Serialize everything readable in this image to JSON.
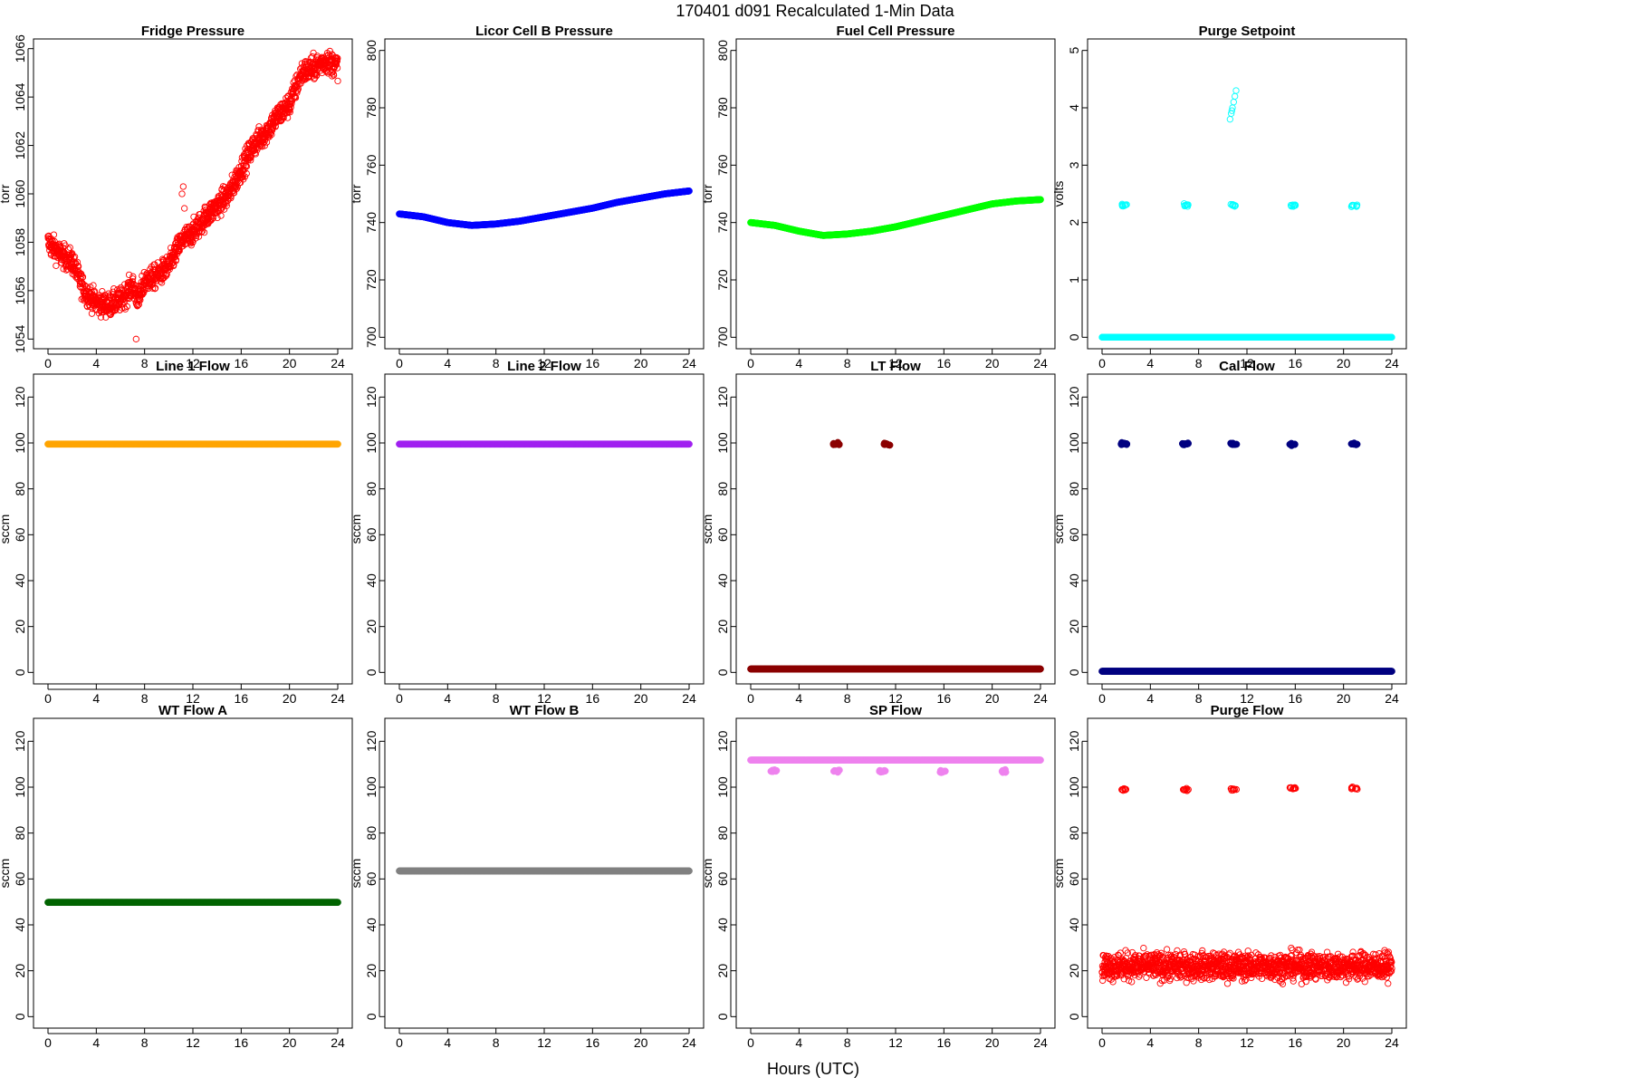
{
  "header": {
    "title": "170401   d091   Recalculated 1-Min Data"
  },
  "footer": {
    "xlabel": "Hours (UTC)"
  },
  "chart_data": [
    {
      "type": "scatter",
      "title": "Fridge Pressure",
      "ylabel": "torr",
      "xlim": [
        0,
        24
      ],
      "ylim": [
        1053.6,
        1066.4
      ],
      "yticks": [
        1054,
        1056,
        1058,
        1060,
        1062,
        1064,
        1066
      ],
      "xticks": [
        0,
        4,
        8,
        12,
        16,
        20,
        24
      ],
      "marker": "open-circle",
      "color": "#ff0000",
      "series": [
        {
          "x": [
            0,
            1,
            2,
            3,
            4,
            5,
            6,
            7,
            7.5,
            8,
            9,
            10,
            11,
            12,
            13,
            14,
            15,
            16,
            17,
            18,
            19,
            20,
            21,
            22,
            23,
            24
          ],
          "y": [
            1058,
            1057.5,
            1057.2,
            1056,
            1055.5,
            1055.4,
            1055.6,
            1056.2,
            1055.6,
            1056.4,
            1056.6,
            1057,
            1058,
            1058.4,
            1059,
            1059.5,
            1060,
            1061,
            1062,
            1062.5,
            1063.2,
            1063.7,
            1065,
            1065.2,
            1065.5,
            1065.3
          ],
          "noise": 0.5
        }
      ],
      "outliers": {
        "x": [
          11.1,
          11.2,
          11.3,
          7.3
        ],
        "y": [
          1060,
          1060.3,
          1059.4,
          1054
        ]
      }
    },
    {
      "type": "scatter",
      "title": "Licor Cell B Pressure",
      "ylabel": "torr",
      "xlim": [
        0,
        24
      ],
      "ylim": [
        696,
        804
      ],
      "yticks": [
        700,
        720,
        740,
        760,
        780,
        800
      ],
      "xticks": [
        0,
        4,
        8,
        12,
        16,
        20,
        24
      ],
      "marker": "filled",
      "color": "#0000ff",
      "series": [
        {
          "x": [
            0,
            2,
            4,
            6,
            8,
            10,
            12,
            14,
            16,
            18,
            20,
            22,
            24
          ],
          "y": [
            743,
            742,
            740,
            739,
            739.5,
            740.5,
            742,
            743.5,
            745,
            747,
            748.5,
            750,
            751
          ],
          "noise": 0
        }
      ]
    },
    {
      "type": "scatter",
      "title": "Fuel Cell Pressure",
      "ylabel": "torr",
      "xlim": [
        0,
        24
      ],
      "ylim": [
        696,
        804
      ],
      "yticks": [
        700,
        720,
        740,
        760,
        780,
        800
      ],
      "xticks": [
        0,
        4,
        8,
        12,
        16,
        20,
        24
      ],
      "marker": "filled",
      "color": "#00ff00",
      "series": [
        {
          "x": [
            0,
            2,
            4,
            6,
            8,
            10,
            12,
            14,
            16,
            18,
            20,
            22,
            24
          ],
          "y": [
            740,
            739,
            737,
            735.5,
            736,
            737,
            738.5,
            740.5,
            742.5,
            744.5,
            746.5,
            747.5,
            748
          ],
          "noise": 0
        }
      ]
    },
    {
      "type": "scatter",
      "title": "Purge Setpoint",
      "ylabel": "volts",
      "xlim": [
        0,
        24
      ],
      "ylim": [
        -0.2,
        5.2
      ],
      "yticks": [
        0,
        1,
        2,
        3,
        4,
        5
      ],
      "xticks": [
        0,
        4,
        8,
        12,
        16,
        20,
        24
      ],
      "marker": "open-circle",
      "color": "#00ffff",
      "series": [
        {
          "x": [
            0,
            24
          ],
          "y": [
            0,
            0
          ],
          "noise": 0
        }
      ],
      "clusters": [
        {
          "x": 1.8,
          "y": 2.3
        },
        {
          "x": 6.9,
          "y": 2.3
        },
        {
          "x": 10.9,
          "y": 2.3
        },
        {
          "x": 15.8,
          "y": 2.3
        },
        {
          "x": 20.9,
          "y": 2.3
        }
      ],
      "outliers": {
        "x": [
          10.6,
          10.7,
          10.8,
          10.9,
          11.0,
          11.1,
          10.75
        ],
        "y": [
          3.8,
          3.9,
          4.0,
          4.1,
          4.2,
          4.3,
          3.95
        ]
      }
    },
    {
      "type": "scatter",
      "title": "Line 1 Flow",
      "ylabel": "sccm",
      "xlim": [
        0,
        24
      ],
      "ylim": [
        -5,
        130
      ],
      "yticks": [
        0,
        20,
        40,
        60,
        80,
        100,
        120
      ],
      "xticks": [
        0,
        4,
        8,
        12,
        16,
        20,
        24
      ],
      "marker": "filled",
      "color": "#ffa500",
      "series": [
        {
          "x": [
            0,
            24
          ],
          "y": [
            99.5,
            99.5
          ],
          "noise": 0
        }
      ]
    },
    {
      "type": "scatter",
      "title": "Line 2 Flow",
      "ylabel": "sccm",
      "xlim": [
        0,
        24
      ],
      "ylim": [
        -5,
        130
      ],
      "yticks": [
        0,
        20,
        40,
        60,
        80,
        100,
        120
      ],
      "xticks": [
        0,
        4,
        8,
        12,
        16,
        20,
        24
      ],
      "marker": "filled",
      "color": "#a020f0",
      "series": [
        {
          "x": [
            0,
            24
          ],
          "y": [
            99.5,
            99.5
          ],
          "noise": 0
        }
      ]
    },
    {
      "type": "scatter",
      "title": "LT Flow",
      "ylabel": "sccm",
      "xlim": [
        0,
        24
      ],
      "ylim": [
        -5,
        130
      ],
      "yticks": [
        0,
        20,
        40,
        60,
        80,
        100,
        120
      ],
      "xticks": [
        0,
        4,
        8,
        12,
        16,
        20,
        24
      ],
      "marker": "filled",
      "color": "#8b0000",
      "series": [
        {
          "x": [
            0,
            24
          ],
          "y": [
            1.5,
            1.5
          ],
          "noise": 0
        }
      ],
      "clusters": [
        {
          "x": 7.1,
          "y": 99.5
        },
        {
          "x": 11.3,
          "y": 99.5
        }
      ]
    },
    {
      "type": "scatter",
      "title": "Cal Flow",
      "ylabel": "sccm",
      "xlim": [
        0,
        24
      ],
      "ylim": [
        -5,
        130
      ],
      "yticks": [
        0,
        20,
        40,
        60,
        80,
        100,
        120
      ],
      "xticks": [
        0,
        4,
        8,
        12,
        16,
        20,
        24
      ],
      "marker": "filled",
      "color": "#000080",
      "series": [
        {
          "x": [
            0,
            24
          ],
          "y": [
            0.5,
            0.5
          ],
          "noise": 0
        }
      ],
      "clusters": [
        {
          "x": 1.8,
          "y": 99.5
        },
        {
          "x": 6.9,
          "y": 99.5
        },
        {
          "x": 10.9,
          "y": 99.5
        },
        {
          "x": 15.8,
          "y": 99.5
        },
        {
          "x": 20.9,
          "y": 99.5
        }
      ]
    },
    {
      "type": "scatter",
      "title": "WT Flow A",
      "ylabel": "sccm",
      "xlim": [
        0,
        24
      ],
      "ylim": [
        -5,
        130
      ],
      "yticks": [
        0,
        20,
        40,
        60,
        80,
        100,
        120
      ],
      "xticks": [
        0,
        4,
        8,
        12,
        16,
        20,
        24
      ],
      "marker": "filled",
      "color": "#006400",
      "series": [
        {
          "x": [
            0,
            24
          ],
          "y": [
            49.8,
            49.8
          ],
          "noise": 0
        }
      ]
    },
    {
      "type": "scatter",
      "title": "WT Flow B",
      "ylabel": "sccm",
      "xlim": [
        0,
        24
      ],
      "ylim": [
        -5,
        130
      ],
      "yticks": [
        0,
        20,
        40,
        60,
        80,
        100,
        120
      ],
      "xticks": [
        0,
        4,
        8,
        12,
        16,
        20,
        24
      ],
      "marker": "filled",
      "color": "#808080",
      "series": [
        {
          "x": [
            0,
            24
          ],
          "y": [
            63.5,
            63.5
          ],
          "noise": 0
        }
      ]
    },
    {
      "type": "scatter",
      "title": "SP Flow",
      "ylabel": "sccm",
      "xlim": [
        0,
        24
      ],
      "ylim": [
        -5,
        130
      ],
      "yticks": [
        0,
        20,
        40,
        60,
        80,
        100,
        120
      ],
      "xticks": [
        0,
        4,
        8,
        12,
        16,
        20,
        24
      ],
      "marker": "filled",
      "color": "#ee82ee",
      "series": [
        {
          "x": [
            0,
            24
          ],
          "y": [
            111.8,
            111.8
          ],
          "noise": 0
        }
      ],
      "clusters": [
        {
          "x": 1.9,
          "y": 107
        },
        {
          "x": 7.1,
          "y": 107
        },
        {
          "x": 10.9,
          "y": 107
        },
        {
          "x": 15.9,
          "y": 107
        },
        {
          "x": 21.0,
          "y": 107
        }
      ]
    },
    {
      "type": "scatter",
      "title": "Purge Flow",
      "ylabel": "sccm",
      "xlim": [
        0,
        24
      ],
      "ylim": [
        -5,
        130
      ],
      "yticks": [
        0,
        20,
        40,
        60,
        80,
        100,
        120
      ],
      "xticks": [
        0,
        4,
        8,
        12,
        16,
        20,
        24
      ],
      "marker": "open-circle",
      "color": "#ff0000",
      "series": [
        {
          "x": [
            0,
            24
          ],
          "y": [
            22,
            22
          ],
          "noise": 6
        }
      ],
      "clusters": [
        {
          "x": 1.8,
          "y": 99
        },
        {
          "x": 6.9,
          "y": 99
        },
        {
          "x": 10.9,
          "y": 99
        },
        {
          "x": 15.8,
          "y": 99.5
        },
        {
          "x": 20.9,
          "y": 99.5
        }
      ]
    }
  ]
}
